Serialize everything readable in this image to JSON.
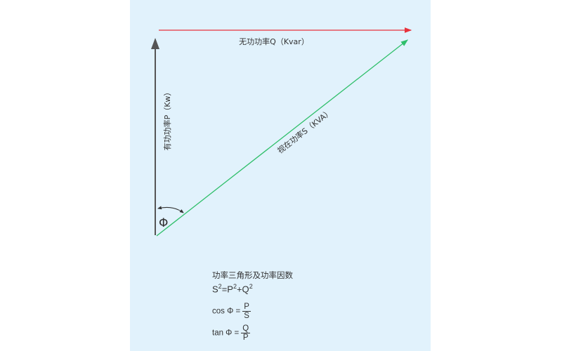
{
  "diagram": {
    "reactive_label": "无功功率Q（Kvar）",
    "active_label": "有功功率P（Kw）",
    "apparent_label": "视在功率S（KVA）",
    "angle_symbol": "Φ",
    "colors": {
      "background": "#e1f2fc",
      "reactive": "#e8323c",
      "active": "#555555",
      "apparent": "#2fbf6a"
    }
  },
  "formulas": {
    "title": "功率三角形及功率因数",
    "pythagoras": {
      "s": "S",
      "eq": "=P",
      "plus": "+Q",
      "exp": "2"
    },
    "cos": {
      "lhs": "cos Φ =",
      "num": "P",
      "den": "S"
    },
    "tan": {
      "lhs": "tan Φ =",
      "num": "Q",
      "den": "P"
    }
  }
}
